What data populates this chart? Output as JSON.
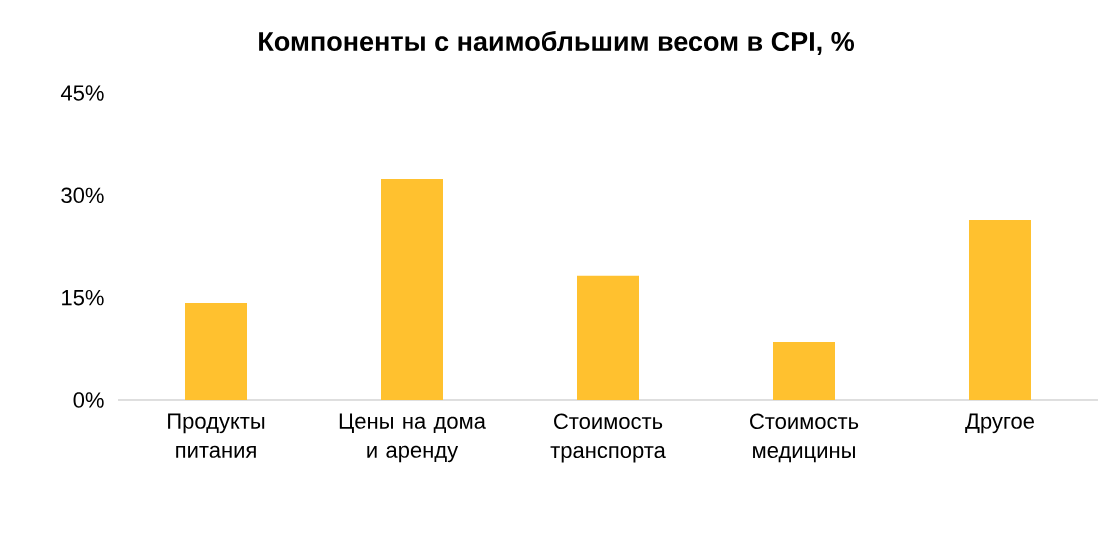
{
  "chart_data": {
    "type": "bar",
    "title": "Компоненты с наимобльшим весом в CPI, %",
    "categories": [
      "Продукты питания",
      "Цены на дома и аренду",
      "Стоимость транспорта",
      "Стоимость медицины",
      "Другое"
    ],
    "values": [
      14.2,
      32.4,
      18.2,
      8.5,
      26.4
    ],
    "color": "#ffc12f",
    "ylim": [
      0,
      45
    ],
    "yticks": [
      {
        "value": 0,
        "label": "0%"
      },
      {
        "value": 15,
        "label": "15%"
      },
      {
        "value": 30,
        "label": "30%"
      },
      {
        "value": 45,
        "label": "45%"
      }
    ]
  }
}
